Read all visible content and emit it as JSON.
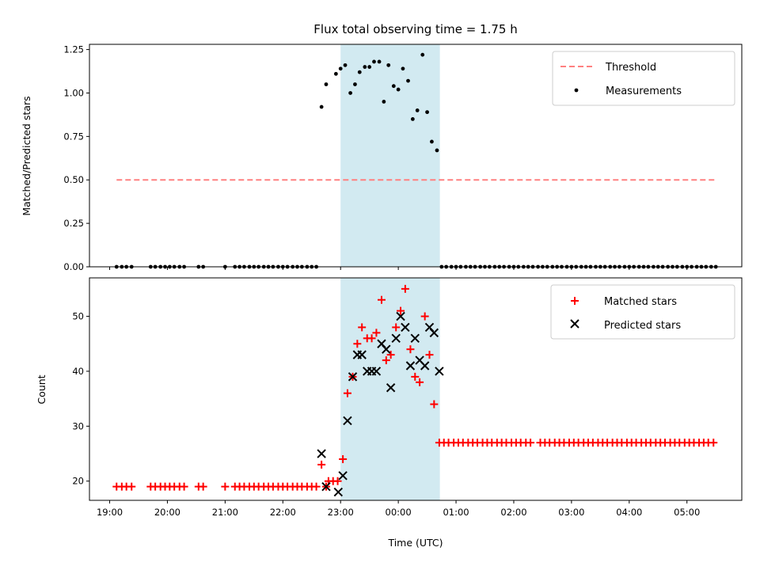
{
  "chart_data": [
    {
      "type": "scatter",
      "title": "Flux total observing time = 1.75 h",
      "xlabel": "",
      "ylabel": "Matched/Predicted stars",
      "ylim": [
        0,
        1.28
      ],
      "yticks": [
        "0.00",
        "0.25",
        "0.50",
        "0.75",
        "1.00",
        "1.25"
      ],
      "ytick_values": [
        0,
        0.25,
        0.5,
        0.75,
        1.0,
        1.25
      ],
      "legend_position": "top-right",
      "highlight_span_hours": [
        23.0,
        24.72
      ],
      "highlight_color": "#add8e6",
      "series": [
        {
          "name": "Threshold",
          "kind": "dashed-line",
          "color": "#ff8080",
          "x_hours": [
            19.12,
            24.0,
            29.5
          ],
          "y": [
            0.5,
            0.5,
            0.5
          ]
        },
        {
          "name": "Measurements",
          "kind": "dots",
          "color": "#000000",
          "points": [
            [
              19.12,
              0
            ],
            [
              19.21,
              0
            ],
            [
              19.29,
              0
            ],
            [
              19.38,
              0
            ],
            [
              19.71,
              0
            ],
            [
              19.79,
              0
            ],
            [
              19.88,
              0
            ],
            [
              19.96,
              0
            ],
            [
              20.04,
              0
            ],
            [
              20.12,
              0
            ],
            [
              20.21,
              0
            ],
            [
              20.29,
              0
            ],
            [
              20.54,
              0
            ],
            [
              20.62,
              0
            ],
            [
              21.0,
              0
            ],
            [
              21.17,
              0
            ],
            [
              21.25,
              0
            ],
            [
              21.33,
              0
            ],
            [
              21.42,
              0
            ],
            [
              21.5,
              0
            ],
            [
              21.58,
              0
            ],
            [
              21.67,
              0
            ],
            [
              21.75,
              0
            ],
            [
              21.83,
              0
            ],
            [
              21.92,
              0
            ],
            [
              22.0,
              0
            ],
            [
              22.08,
              0
            ],
            [
              22.17,
              0
            ],
            [
              22.25,
              0
            ],
            [
              22.33,
              0
            ],
            [
              22.42,
              0
            ],
            [
              22.5,
              0
            ],
            [
              22.58,
              0
            ],
            [
              22.67,
              0.92
            ],
            [
              22.75,
              1.05
            ],
            [
              22.92,
              1.11
            ],
            [
              23.0,
              1.14
            ],
            [
              23.08,
              1.16
            ],
            [
              23.17,
              1.0
            ],
            [
              23.25,
              1.05
            ],
            [
              23.33,
              1.12
            ],
            [
              23.42,
              1.15
            ],
            [
              23.5,
              1.15
            ],
            [
              23.58,
              1.18
            ],
            [
              23.67,
              1.18
            ],
            [
              23.75,
              0.95
            ],
            [
              23.83,
              1.16
            ],
            [
              23.92,
              1.04
            ],
            [
              24.0,
              1.02
            ],
            [
              24.08,
              1.14
            ],
            [
              24.17,
              1.07
            ],
            [
              24.25,
              0.85
            ],
            [
              24.33,
              0.9
            ],
            [
              24.42,
              1.22
            ],
            [
              24.5,
              0.89
            ],
            [
              24.58,
              0.72
            ],
            [
              24.67,
              0.67
            ],
            [
              24.75,
              0
            ],
            [
              24.83,
              0
            ],
            [
              24.92,
              0
            ],
            [
              25.0,
              0
            ],
            [
              25.08,
              0
            ],
            [
              25.17,
              0
            ],
            [
              25.25,
              0
            ],
            [
              25.33,
              0
            ],
            [
              25.42,
              0
            ],
            [
              25.5,
              0
            ],
            [
              25.58,
              0
            ],
            [
              25.67,
              0
            ],
            [
              25.75,
              0
            ],
            [
              25.83,
              0
            ],
            [
              25.92,
              0
            ],
            [
              26.0,
              0
            ],
            [
              26.08,
              0
            ],
            [
              26.17,
              0
            ],
            [
              26.25,
              0
            ],
            [
              26.33,
              0
            ],
            [
              26.42,
              0
            ],
            [
              26.5,
              0
            ],
            [
              26.58,
              0
            ],
            [
              26.67,
              0
            ],
            [
              26.75,
              0
            ],
            [
              26.83,
              0
            ],
            [
              26.92,
              0
            ],
            [
              27.0,
              0
            ],
            [
              27.08,
              0
            ],
            [
              27.17,
              0
            ],
            [
              27.25,
              0
            ],
            [
              27.33,
              0
            ],
            [
              27.42,
              0
            ],
            [
              27.5,
              0
            ],
            [
              27.58,
              0
            ],
            [
              27.67,
              0
            ],
            [
              27.75,
              0
            ],
            [
              27.83,
              0
            ],
            [
              27.92,
              0
            ],
            [
              28.0,
              0
            ],
            [
              28.08,
              0
            ],
            [
              28.17,
              0
            ],
            [
              28.25,
              0
            ],
            [
              28.33,
              0
            ],
            [
              28.42,
              0
            ],
            [
              28.5,
              0
            ],
            [
              28.58,
              0
            ],
            [
              28.67,
              0
            ],
            [
              28.75,
              0
            ],
            [
              28.83,
              0
            ],
            [
              28.92,
              0
            ],
            [
              29.0,
              0
            ],
            [
              29.08,
              0
            ],
            [
              29.17,
              0
            ],
            [
              29.25,
              0
            ],
            [
              29.33,
              0
            ],
            [
              29.42,
              0
            ],
            [
              29.5,
              0
            ]
          ]
        }
      ]
    },
    {
      "type": "scatter",
      "title": "",
      "xlabel": "Time (UTC)",
      "ylabel": "Count",
      "ylim": [
        16.5,
        57
      ],
      "yticks": [
        "20",
        "30",
        "40",
        "50"
      ],
      "ytick_values": [
        20,
        30,
        40,
        50
      ],
      "xticks": [
        "19:00",
        "20:00",
        "21:00",
        "22:00",
        "23:00",
        "00:00",
        "01:00",
        "02:00",
        "03:00",
        "04:00",
        "05:00"
      ],
      "xtick_hours": [
        19,
        20,
        21,
        22,
        23,
        24,
        25,
        26,
        27,
        28,
        29
      ],
      "xlim_hours": [
        18.65,
        29.95
      ],
      "legend_position": "top-right",
      "highlight_span_hours": [
        23.0,
        24.72
      ],
      "highlight_color": "#add8e6",
      "series": [
        {
          "name": "Matched stars",
          "kind": "plus",
          "color": "#ff0000",
          "points": [
            [
              19.12,
              19
            ],
            [
              19.21,
              19
            ],
            [
              19.29,
              19
            ],
            [
              19.38,
              19
            ],
            [
              19.71,
              19
            ],
            [
              19.79,
              19
            ],
            [
              19.88,
              19
            ],
            [
              19.96,
              19
            ],
            [
              20.04,
              19
            ],
            [
              20.12,
              19
            ],
            [
              20.21,
              19
            ],
            [
              20.29,
              19
            ],
            [
              20.54,
              19
            ],
            [
              20.62,
              19
            ],
            [
              21.0,
              19
            ],
            [
              21.17,
              19
            ],
            [
              21.25,
              19
            ],
            [
              21.33,
              19
            ],
            [
              21.42,
              19
            ],
            [
              21.5,
              19
            ],
            [
              21.58,
              19
            ],
            [
              21.67,
              19
            ],
            [
              21.75,
              19
            ],
            [
              21.83,
              19
            ],
            [
              21.92,
              19
            ],
            [
              22.0,
              19
            ],
            [
              22.08,
              19
            ],
            [
              22.17,
              19
            ],
            [
              22.25,
              19
            ],
            [
              22.33,
              19
            ],
            [
              22.42,
              19
            ],
            [
              22.5,
              19
            ],
            [
              22.58,
              19
            ],
            [
              22.67,
              23
            ],
            [
              22.75,
              19
            ],
            [
              22.79,
              20
            ],
            [
              22.87,
              20
            ],
            [
              22.95,
              20
            ],
            [
              23.04,
              24
            ],
            [
              23.12,
              36
            ],
            [
              23.21,
              39
            ],
            [
              23.29,
              45
            ],
            [
              23.37,
              48
            ],
            [
              23.46,
              46
            ],
            [
              23.54,
              46
            ],
            [
              23.62,
              47
            ],
            [
              23.71,
              53
            ],
            [
              23.79,
              42
            ],
            [
              23.87,
              43
            ],
            [
              23.96,
              48
            ],
            [
              24.04,
              51
            ],
            [
              24.12,
              55
            ],
            [
              24.21,
              44
            ],
            [
              24.29,
              39
            ],
            [
              24.37,
              38
            ],
            [
              24.46,
              50
            ],
            [
              24.54,
              43
            ],
            [
              24.62,
              34
            ],
            [
              24.71,
              27
            ],
            [
              24.79,
              27
            ],
            [
              24.87,
              27
            ],
            [
              24.96,
              27
            ],
            [
              25.04,
              27
            ],
            [
              25.12,
              27
            ],
            [
              25.21,
              27
            ],
            [
              25.29,
              27
            ],
            [
              25.37,
              27
            ],
            [
              25.46,
              27
            ],
            [
              25.54,
              27
            ],
            [
              25.62,
              27
            ],
            [
              25.71,
              27
            ],
            [
              25.79,
              27
            ],
            [
              25.87,
              27
            ],
            [
              25.96,
              27
            ],
            [
              26.04,
              27
            ],
            [
              26.12,
              27
            ],
            [
              26.21,
              27
            ],
            [
              26.29,
              27
            ],
            [
              26.46,
              27
            ],
            [
              26.54,
              27
            ],
            [
              26.62,
              27
            ],
            [
              26.71,
              27
            ],
            [
              26.79,
              27
            ],
            [
              26.87,
              27
            ],
            [
              26.96,
              27
            ],
            [
              27.04,
              27
            ],
            [
              27.12,
              27
            ],
            [
              27.21,
              27
            ],
            [
              27.29,
              27
            ],
            [
              27.37,
              27
            ],
            [
              27.46,
              27
            ],
            [
              27.54,
              27
            ],
            [
              27.62,
              27
            ],
            [
              27.71,
              27
            ],
            [
              27.79,
              27
            ],
            [
              27.87,
              27
            ],
            [
              27.96,
              27
            ],
            [
              28.04,
              27
            ],
            [
              28.12,
              27
            ],
            [
              28.21,
              27
            ],
            [
              28.29,
              27
            ],
            [
              28.37,
              27
            ],
            [
              28.46,
              27
            ],
            [
              28.54,
              27
            ],
            [
              28.62,
              27
            ],
            [
              28.71,
              27
            ],
            [
              28.79,
              27
            ],
            [
              28.87,
              27
            ],
            [
              28.96,
              27
            ],
            [
              29.04,
              27
            ],
            [
              29.12,
              27
            ],
            [
              29.21,
              27
            ],
            [
              29.29,
              27
            ],
            [
              29.37,
              27
            ],
            [
              29.46,
              27
            ]
          ]
        },
        {
          "name": "Predicted stars",
          "kind": "x",
          "color": "#000000",
          "points": [
            [
              22.67,
              25
            ],
            [
              22.75,
              19
            ],
            [
              22.96,
              18
            ],
            [
              23.04,
              21
            ],
            [
              23.12,
              31
            ],
            [
              23.21,
              39
            ],
            [
              23.29,
              43
            ],
            [
              23.37,
              43
            ],
            [
              23.46,
              40
            ],
            [
              23.54,
              40
            ],
            [
              23.62,
              40
            ],
            [
              23.71,
              45
            ],
            [
              23.79,
              44
            ],
            [
              23.87,
              37
            ],
            [
              23.96,
              46
            ],
            [
              24.04,
              50
            ],
            [
              24.12,
              48
            ],
            [
              24.21,
              41
            ],
            [
              24.29,
              46
            ],
            [
              24.37,
              42
            ],
            [
              24.46,
              41
            ],
            [
              24.54,
              48
            ],
            [
              24.62,
              47
            ],
            [
              24.71,
              40
            ]
          ]
        }
      ]
    }
  ]
}
